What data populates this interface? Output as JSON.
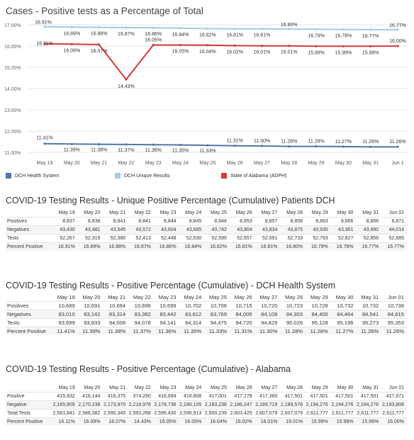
{
  "chart_data": {
    "type": "line",
    "title": "Cases - Positive tests as a Percentage of Total",
    "x": [
      "May 19",
      "May 20",
      "May 21",
      "May 22",
      "May 23",
      "May 24",
      "May 25",
      "May 26",
      "May 27",
      "May 28",
      "May 29",
      "May 30",
      "May 31",
      "Jun 1"
    ],
    "y_ticks": [
      "17.00%",
      "16.00%",
      "15.00%",
      "14.00%",
      "13.00%",
      "12.00%",
      "11.00%"
    ],
    "ylim": [
      11.0,
      17.0
    ],
    "grid": true,
    "legend_position": "bottom",
    "series": [
      {
        "name": "DCH Health System",
        "color": "#4e79a7",
        "values": [
          11.41,
          11.39,
          11.38,
          11.37,
          11.36,
          11.35,
          11.33,
          11.31,
          11.3,
          11.28,
          11.28,
          11.27,
          11.26,
          11.26
        ],
        "labels": [
          "11.41%",
          "11.39%",
          "11.38%",
          "11.37%",
          "11.36%",
          "11.35%",
          "11.33%",
          "11.31%",
          "11.30%",
          "11.28%",
          "11.28%",
          "11.27%",
          "11.26%",
          "11.26%"
        ]
      },
      {
        "name": "DCH Unique Results",
        "color": "#a0cbe8",
        "values": [
          16.91,
          16.89,
          16.88,
          16.87,
          16.86,
          16.84,
          16.82,
          16.81,
          16.81,
          16.8,
          16.79,
          16.78,
          16.77,
          16.77
        ],
        "labels": [
          "16.91%",
          "16.89%",
          "16.88%",
          "16.87%",
          "16.86%",
          "16.84%",
          "16.82%",
          "16.81%",
          "16.81%",
          "16.80%",
          "16.79%",
          "16.78%",
          "16.77%",
          "16.77%"
        ]
      },
      {
        "name": "State of Alabama (ADPH)",
        "color": "#d03b3e",
        "values": [
          16.11,
          16.09,
          16.07,
          14.43,
          16.05,
          16.05,
          16.04,
          16.02,
          16.01,
          16.01,
          15.99,
          15.99,
          15.99,
          16.0
        ],
        "labels": [
          "16.11%",
          "16.09%",
          "16.07%",
          "14.43%",
          "16.05%",
          "16.05%",
          "16.04%",
          "16.02%",
          "16.01%",
          "16.01%",
          "15.99%",
          "15.99%",
          "15.99%",
          "16.00%"
        ]
      }
    ]
  },
  "legend": {
    "items": [
      {
        "label": "DCH Health System",
        "color": "#4e79a7"
      },
      {
        "label": "DCH Unique Results",
        "color": "#a0cbe8"
      },
      {
        "label": "State of Alabama (ADPH)",
        "color": "#d03b3e"
      }
    ]
  },
  "tables": [
    {
      "title": "COVID-19 Testing Results - Unique Positive Percentage (Cumulative) Patients DCH",
      "columns": [
        "May 19",
        "May 20",
        "May 21",
        "May 22",
        "May 23",
        "May 24",
        "May 25",
        "May 26",
        "May 27",
        "May 28",
        "May 29",
        "May 30",
        "May 31",
        "Jun 01"
      ],
      "rows": [
        {
          "label": "Positives",
          "values": [
            "8,837",
            "8,838",
            "8,841",
            "8,841",
            "8,844",
            "8,845",
            "8,848",
            "8,853",
            "8,857",
            "8,858",
            "8,863",
            "8,866",
            "8,866",
            "8,871"
          ]
        },
        {
          "label": "Negatives",
          "values": [
            "43,430",
            "43,481",
            "43,545",
            "43,572",
            "43,604",
            "43,685",
            "43,742",
            "43,804",
            "43,834",
            "43,875",
            "43,930",
            "43,961",
            "43,990",
            "44,014"
          ]
        },
        {
          "label": "Tests",
          "values": [
            "52,267",
            "52,319",
            "52,386",
            "52,413",
            "52,448",
            "52,530",
            "52,590",
            "52,657",
            "52,691",
            "52,733",
            "52,793",
            "52,827",
            "52,856",
            "52,885"
          ]
        },
        {
          "label": "Percent Positive",
          "values": [
            "16.91%",
            "16.89%",
            "16.88%",
            "16.87%",
            "16.86%",
            "16.84%",
            "16.82%",
            "16.81%",
            "16.81%",
            "16.80%",
            "16.79%",
            "16.78%",
            "16.77%",
            "16.77%"
          ]
        }
      ]
    },
    {
      "title": "COVID-19 Testing Results - Positive Percentage (Cumulative) - DCH Health System",
      "columns": [
        "May 19",
        "May 20",
        "May 21",
        "May 22",
        "May 23",
        "May 24",
        "May 25",
        "May 26",
        "May 27",
        "May 28",
        "May 29",
        "May 30",
        "May 31",
        "Jun 01"
      ],
      "rows": [
        {
          "label": "Positives",
          "values": [
            "10,689",
            "10,691",
            "10,694",
            "10,696",
            "10,699",
            "10,702",
            "10,706",
            "10,715",
            "10,720",
            "10,723",
            "10,728",
            "10,732",
            "10,732",
            "10,738"
          ]
        },
        {
          "label": "Negatives",
          "values": [
            "83,010",
            "83,142",
            "83,314",
            "83,382",
            "83,442",
            "83,612",
            "83,769",
            "84,005",
            "84,109",
            "84,303",
            "84,400",
            "84,464",
            "84,541",
            "84,615"
          ]
        },
        {
          "label": "Tests",
          "values": [
            "93,699",
            "93,833",
            "94,008",
            "94,078",
            "94,141",
            "94,314",
            "94,475",
            "94,720",
            "94,829",
            "95,026",
            "95,128",
            "95,196",
            "95,273",
            "95,353"
          ]
        },
        {
          "label": "Percent Positive",
          "values": [
            "11.41%",
            "11.39%",
            "11.38%",
            "11.37%",
            "11.36%",
            "11.35%",
            "11.33%",
            "11.31%",
            "11.30%",
            "11.28%",
            "11.28%",
            "11.27%",
            "11.26%",
            "11.26%"
          ]
        }
      ]
    },
    {
      "title": "COVID-19 Testing Results - Positive Percentage (Cumulative) - Alabama",
      "columns": [
        "May 19",
        "May 20",
        "May 21",
        "May 22",
        "May 23",
        "May 24",
        "May 25",
        "May 26",
        "May 27",
        "May 28",
        "May 29",
        "May 30",
        "May 31",
        "Jun 01"
      ],
      "rows": [
        {
          "label": "Positive",
          "values": [
            "415,932",
            "416,144",
            "416,375",
            "374,290",
            "416,694",
            "416,808",
            "417,001",
            "417,178",
            "417,360",
            "417,501",
            "417,501",
            "417,501",
            "417,501",
            "417,971"
          ]
        },
        {
          "label": "Negative",
          "values": [
            "2,165,909",
            "2,170,238",
            "2,173,970",
            "2,218,978",
            "2,178,736",
            "2,180,105",
            "2,183,238",
            "2,186,247",
            "2,189,719",
            "2,189,578",
            "2,194,276",
            "2,194,276",
            "2,194,276",
            "2,193,806"
          ]
        },
        {
          "label": "Total Tests",
          "values": [
            "2,581,841",
            "2,586,382",
            "2,590,345",
            "2,593,268",
            "2,595,430",
            "2,596,913",
            "2,600,239",
            "2,603,425",
            "2,607,079",
            "2,607,079",
            "2,611,777",
            "2,611,777",
            "2,611,777",
            "2,611,777"
          ]
        },
        {
          "label": "Percent Positive",
          "values": [
            "16.11%",
            "16.09%",
            "16.07%",
            "14.43%",
            "16.05%",
            "16.05%",
            "16.04%",
            "16.02%",
            "16.01%",
            "16.01%",
            "15.99%",
            "15.99%",
            "15.99%",
            "16.00%"
          ]
        }
      ]
    }
  ]
}
